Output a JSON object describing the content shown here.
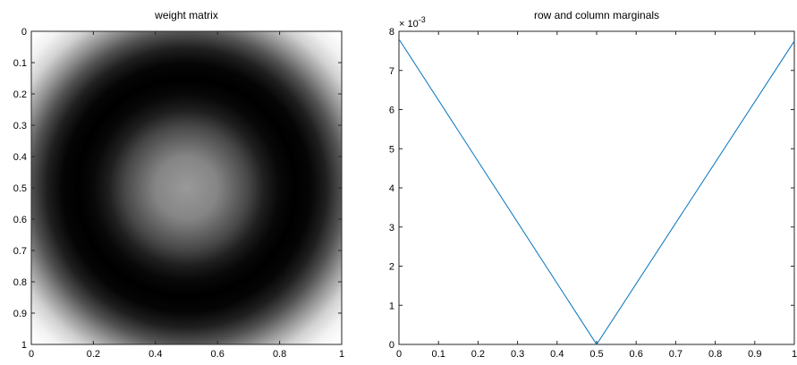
{
  "chart_data": [
    {
      "type": "heatmap",
      "title": "weight matrix",
      "colormap": "gray",
      "x_ticks": [
        "0",
        "0.2",
        "0.4",
        "0.6",
        "0.8",
        "1"
      ],
      "x_tick_values": [
        0,
        0.2,
        0.4,
        0.6,
        0.8,
        1
      ],
      "y_ticks": [
        "0",
        "0.1",
        "0.2",
        "0.3",
        "0.4",
        "0.5",
        "0.6",
        "0.7",
        "0.8",
        "0.9",
        "1"
      ],
      "y_tick_values": [
        0,
        0.1,
        0.2,
        0.3,
        0.4,
        0.5,
        0.6,
        0.7,
        0.8,
        0.9,
        1
      ],
      "xlim": [
        0,
        1
      ],
      "ylim": [
        0,
        1
      ],
      "y_direction": "reverse",
      "grid": false,
      "legend": "none",
      "radial_profile": {
        "r": [
          0,
          0.1,
          0.2,
          0.25,
          0.3,
          0.35,
          0.4,
          0.45,
          0.5,
          0.55,
          0.6,
          0.65,
          0.7
        ],
        "brightness": [
          0.6,
          0.52,
          0.28,
          0.12,
          0.03,
          0.0,
          0.02,
          0.12,
          0.32,
          0.58,
          0.82,
          0.95,
          1.0
        ]
      }
    },
    {
      "type": "line",
      "title": "row and column marginals",
      "xlabel": "",
      "ylabel": "",
      "x_ticks": [
        "0",
        "0.1",
        "0.2",
        "0.3",
        "0.4",
        "0.5",
        "0.6",
        "0.7",
        "0.8",
        "0.9",
        "1"
      ],
      "x_tick_values": [
        0,
        0.1,
        0.2,
        0.3,
        0.4,
        0.5,
        0.6,
        0.7,
        0.8,
        0.9,
        1
      ],
      "y_ticks": [
        "0",
        "1",
        "2",
        "3",
        "4",
        "5",
        "6",
        "7",
        "8"
      ],
      "y_tick_values": [
        0,
        1,
        2,
        3,
        4,
        5,
        6,
        7,
        8
      ],
      "y_exponent_base": "× 10",
      "y_exponent": "-3",
      "xlim": [
        0,
        1
      ],
      "ylim": [
        0,
        8
      ],
      "grid": false,
      "legend": "none",
      "series": [
        {
          "color": "#0072bd",
          "x": [
            0,
            0.5,
            1
          ],
          "y": [
            7.8,
            0,
            7.75
          ]
        }
      ]
    }
  ]
}
